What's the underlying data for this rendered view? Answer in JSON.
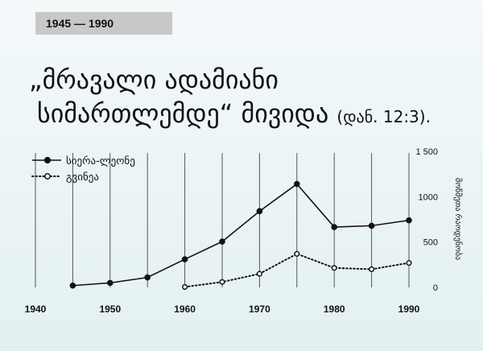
{
  "header": {
    "period": "1945 — 1990"
  },
  "quote": {
    "line1": "„მრავალი ადამიანი",
    "line2_main": "სიმართლემდე“ მივიდა",
    "line2_ref": "(დან. 12:3)."
  },
  "chart_data": {
    "type": "line",
    "title": "",
    "xlabel": "",
    "ylabel": "მოწმეთა რაოდენობა",
    "xlim": [
      1940,
      1990
    ],
    "ylim": [
      0,
      1500
    ],
    "x_ticks": [
      "1940",
      "1950",
      "1960",
      "1970",
      "1980",
      "1990"
    ],
    "y_ticks": [
      "0",
      "500",
      "1000",
      "1 500"
    ],
    "vertical_gridlines_every": 5,
    "legend_position": "top-left",
    "series": [
      {
        "name": "სიერა-ლეონე",
        "marker": "filled-circle",
        "line": "solid",
        "color": "#111111",
        "x": [
          1945,
          1950,
          1955,
          1960,
          1965,
          1970,
          1975,
          1980,
          1985,
          1990
        ],
        "values": [
          20,
          50,
          110,
          310,
          505,
          840,
          1140,
          665,
          680,
          740
        ]
      },
      {
        "name": "გვინეა",
        "marker": "open-circle",
        "line": "dotted",
        "color": "#111111",
        "x": [
          1960,
          1965,
          1970,
          1975,
          1980,
          1985,
          1990
        ],
        "values": [
          5,
          60,
          150,
          370,
          215,
          200,
          270
        ]
      }
    ]
  }
}
